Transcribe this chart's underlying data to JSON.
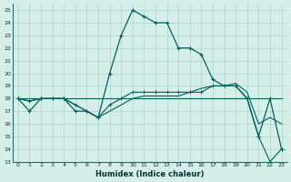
{
  "xlabel": "Humidex (Indice chaleur)",
  "xlim": [
    -0.5,
    23.5
  ],
  "ylim": [
    13,
    25.5
  ],
  "yticks": [
    13,
    14,
    15,
    16,
    17,
    18,
    19,
    20,
    21,
    22,
    23,
    24,
    25
  ],
  "xticks": [
    0,
    1,
    2,
    3,
    4,
    5,
    6,
    7,
    8,
    9,
    10,
    11,
    12,
    13,
    14,
    15,
    16,
    17,
    18,
    19,
    20,
    21,
    22,
    23
  ],
  "bg_color": "#d6eee8",
  "grid_color": "#b0d8d0",
  "line_color": "#006060",
  "line1_x": [
    0,
    1,
    2,
    3,
    4,
    5,
    6,
    7,
    8,
    9,
    10,
    11,
    12,
    13,
    14,
    15,
    16,
    17,
    18,
    19,
    20,
    21,
    22,
    23
  ],
  "line1_y": [
    18,
    17,
    18,
    18,
    18,
    17,
    17,
    16.5,
    20,
    23,
    25,
    24.5,
    24,
    24,
    22,
    22,
    21.5,
    19.5,
    19,
    19,
    18,
    15,
    18,
    14
  ],
  "line2_x": [
    0,
    1,
    2,
    3,
    4,
    5,
    6,
    7,
    8,
    9,
    10,
    11,
    12,
    13,
    14,
    15,
    16,
    17,
    18,
    19,
    20,
    21,
    22,
    23
  ],
  "line2_y": [
    18,
    17.8,
    18,
    18,
    18,
    17.5,
    17,
    16.5,
    17.5,
    18,
    18.5,
    18.5,
    18.5,
    18.5,
    18.5,
    18.5,
    18.5,
    19,
    19,
    19,
    18,
    15,
    13,
    14
  ],
  "line3_x": [
    0,
    23
  ],
  "line3_y": [
    18,
    18
  ],
  "line4_x": [
    0,
    1,
    2,
    3,
    4,
    5,
    6,
    7,
    8,
    9,
    10,
    11,
    12,
    13,
    14,
    15,
    16,
    17,
    18,
    19,
    20,
    21,
    22,
    23
  ],
  "line4_y": [
    18,
    17.8,
    18,
    18,
    18,
    17.5,
    17,
    16.5,
    17,
    17.5,
    18,
    18.2,
    18.2,
    18.2,
    18.2,
    18.5,
    18.8,
    19,
    19,
    19.2,
    18.5,
    16,
    16.5,
    16
  ]
}
